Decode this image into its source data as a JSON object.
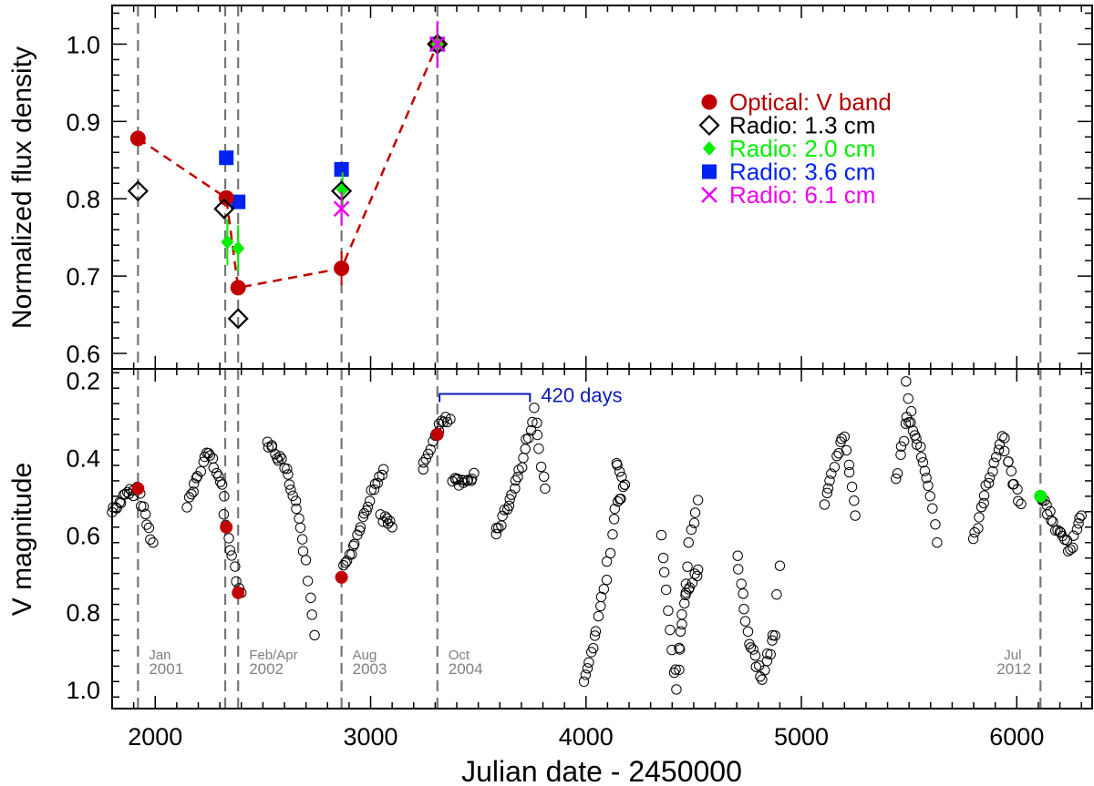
{
  "chart_data": [
    {
      "panel": "top",
      "type": "scatter",
      "ylabel": "Normalized flux density",
      "xlim": [
        1800,
        6350
      ],
      "ylim": [
        0.58,
        1.05
      ],
      "yticks": [
        0.6,
        0.7,
        0.8,
        0.9,
        1.0
      ],
      "ytick_labels": [
        "0.6",
        "0.7",
        "0.8",
        "0.9",
        "1.0"
      ],
      "legend_position": "top-right",
      "series": [
        {
          "name": "Optical: V band",
          "color": "#c00000",
          "marker": "circle",
          "connected": true,
          "points": [
            {
              "x": 1920,
              "y": 0.878
            },
            {
              "x": 2330,
              "y": 0.801
            },
            {
              "x": 2385,
              "y": 0.685
            },
            {
              "x": 2865,
              "y": 0.71
            },
            {
              "x": 3310,
              "y": 1.0
            }
          ],
          "errors": [
            0,
            0,
            0.008,
            0.022,
            0.022
          ]
        },
        {
          "name": "Radio: 1.3 cm",
          "color": "#000000",
          "marker": "diamond-open",
          "points": [
            {
              "x": 1920,
              "y": 0.81
            },
            {
              "x": 2320,
              "y": 0.787
            },
            {
              "x": 2385,
              "y": 0.645
            },
            {
              "x": 2865,
              "y": 0.81
            },
            {
              "x": 3310,
              "y": 1.0
            }
          ]
        },
        {
          "name": "Radio: 2.0 cm",
          "color": "#00ee00",
          "marker": "diamond",
          "points": [
            {
              "x": 2335,
              "y": 0.744
            },
            {
              "x": 2385,
              "y": 0.736
            },
            {
              "x": 2870,
              "y": 0.812
            },
            {
              "x": 3310,
              "y": 1.0
            }
          ],
          "errors": [
            0.03,
            0.03,
            0.022,
            0.022
          ]
        },
        {
          "name": "Radio: 3.6 cm",
          "color": "#0022ee",
          "marker": "square",
          "points": [
            {
              "x": 2330,
              "y": 0.853
            },
            {
              "x": 2385,
              "y": 0.796
            },
            {
              "x": 2865,
              "y": 0.838
            },
            {
              "x": 3310,
              "y": 1.0
            }
          ]
        },
        {
          "name": "Radio: 6.1 cm",
          "color": "#ee00ee",
          "marker": "cross",
          "points": [
            {
              "x": 2865,
              "y": 0.787
            },
            {
              "x": 3310,
              "y": 1.0
            }
          ],
          "errors": [
            0.022,
            0.03
          ]
        }
      ]
    },
    {
      "panel": "bottom",
      "type": "scatter",
      "xlabel": "Julian date - 2450000",
      "ylabel": "V magnitude",
      "xlim": [
        1800,
        6350
      ],
      "ylim": [
        1.05,
        0.17
      ],
      "xticks": [
        2000,
        3000,
        4000,
        5000,
        6000
      ],
      "xtick_labels": [
        "2000",
        "3000",
        "4000",
        "5000",
        "6000"
      ],
      "yticks": [
        0.2,
        0.4,
        0.6,
        0.8,
        1.0
      ],
      "ytick_labels": [
        "0.2",
        "0.4",
        "0.6",
        "0.8",
        "1.0"
      ],
      "lightcurve_segments": [
        {
          "x": [
            1800,
            1860,
            1920,
            1990
          ],
          "y": [
            0.54,
            0.5,
            0.48,
            0.62
          ]
        },
        {
          "x": [
            2150,
            2200,
            2240,
            2290,
            2320
          ],
          "y": [
            0.52,
            0.45,
            0.38,
            0.44,
            0.5
          ]
        },
        {
          "x": [
            2320,
            2350,
            2380,
            2400
          ],
          "y": [
            0.55,
            0.63,
            0.71,
            0.75
          ]
        },
        {
          "x": [
            2520,
            2600,
            2650,
            2700,
            2740
          ],
          "y": [
            0.36,
            0.42,
            0.52,
            0.66,
            0.86
          ]
        },
        {
          "x": [
            2870,
            2920,
            2970,
            3020,
            3060
          ],
          "y": [
            0.7,
            0.63,
            0.54,
            0.47,
            0.43
          ]
        },
        {
          "x": [
            3050,
            3100
          ],
          "y": [
            0.55,
            0.58
          ]
        },
        {
          "x": [
            3240,
            3280,
            3330,
            3370
          ],
          "y": [
            0.43,
            0.37,
            0.31,
            0.3
          ]
        },
        {
          "x": [
            3380,
            3430,
            3480
          ],
          "y": [
            0.46,
            0.47,
            0.44
          ]
        },
        {
          "x": [
            3580,
            3640,
            3700,
            3760,
            3810
          ],
          "y": [
            0.6,
            0.52,
            0.42,
            0.28,
            0.48
          ]
        },
        {
          "x": [
            3990,
            4050,
            4100,
            4130,
            4180
          ],
          "y": [
            0.99,
            0.85,
            0.68,
            0.55,
            0.47
          ]
        },
        {
          "x": [
            4140,
            4180
          ],
          "y": [
            0.41,
            0.47
          ]
        },
        {
          "x": [
            4350,
            4420,
            4480,
            4520
          ],
          "y": [
            0.6,
            1.0,
            0.62,
            0.51
          ]
        },
        {
          "x": [
            4420,
            4460,
            4520
          ],
          "y": [
            0.95,
            0.76,
            0.69
          ]
        },
        {
          "x": [
            4700,
            4760,
            4820,
            4880,
            4900
          ],
          "y": [
            0.66,
            0.88,
            0.97,
            0.85,
            0.68
          ]
        },
        {
          "x": [
            5110,
            5160,
            5200,
            5250
          ],
          "y": [
            0.52,
            0.4,
            0.34,
            0.55
          ]
        },
        {
          "x": [
            5440,
            5490,
            5540,
            5600,
            5630
          ],
          "y": [
            0.46,
            0.29,
            0.36,
            0.5,
            0.62
          ]
        },
        {
          "x": [
            5490,
            5510
          ],
          "y": [
            0.21,
            0.28
          ]
        },
        {
          "x": [
            5800,
            5860,
            5930,
            5980,
            6020
          ],
          "y": [
            0.61,
            0.48,
            0.34,
            0.46,
            0.52
          ]
        },
        {
          "x": [
            6110,
            6180,
            6250,
            6300
          ],
          "y": [
            0.5,
            0.58,
            0.64,
            0.55
          ]
        }
      ],
      "optical_epochs": [
        {
          "x": 1920,
          "y": 0.48
        },
        {
          "x": 2330,
          "y": 0.58
        },
        {
          "x": 2385,
          "y": 0.75
        },
        {
          "x": 2865,
          "y": 0.71
        },
        {
          "x": 3310,
          "y": 0.34
        }
      ],
      "last_epoch": {
        "x": 6110,
        "y": 0.5
      },
      "optical_color": "#c00000",
      "last_epoch_color": "#00ee00",
      "annotation": {
        "text": "420 days",
        "x_start": 3320,
        "x_end": 3740,
        "y": 0.235,
        "color": "#0a1ab4"
      }
    }
  ],
  "epochs": [
    {
      "x": 1920,
      "label_top": "Jan",
      "label_bottom": "2001"
    },
    {
      "x": 2325,
      "label_top": "",
      "label_bottom": ""
    },
    {
      "x": 2385,
      "label_top": "Feb/Apr",
      "label_bottom": "2002"
    },
    {
      "x": 2865,
      "label_top": "Aug",
      "label_bottom": "2003"
    },
    {
      "x": 3310,
      "label_top": "Oct",
      "label_bottom": "2004"
    },
    {
      "x": 6110,
      "label_top": "Jul",
      "label_bottom": "2012"
    }
  ]
}
